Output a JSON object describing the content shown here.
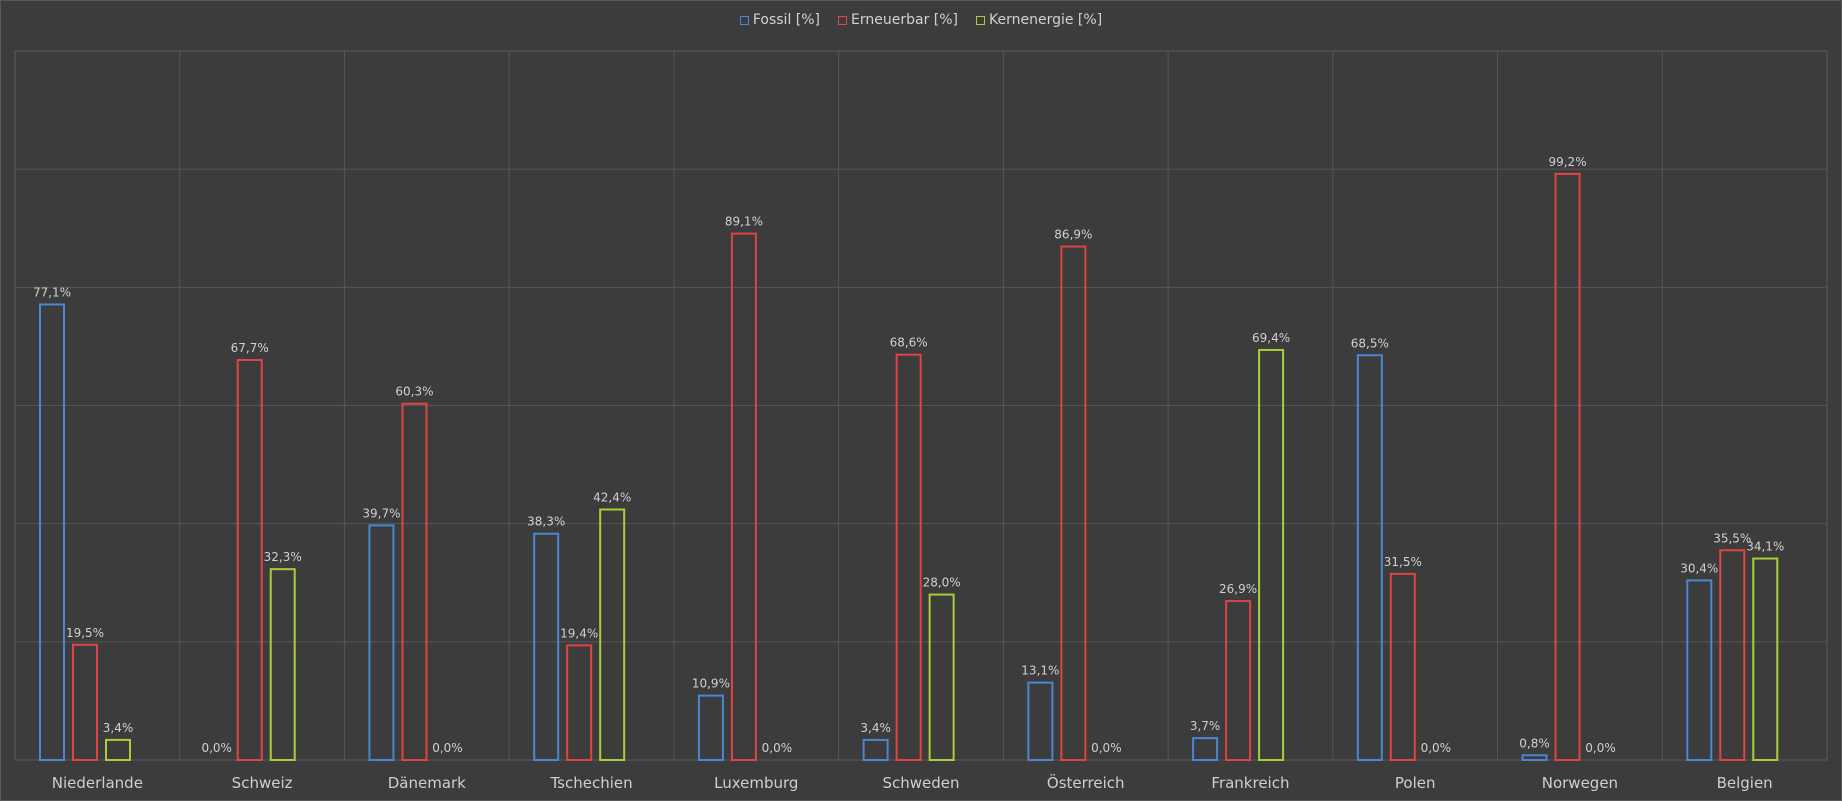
{
  "chart_data": {
    "type": "bar",
    "categories": [
      "Niederlande",
      "Schweiz",
      "Dänemark",
      "Tschechien",
      "Luxemburg",
      "Schweden",
      "Österreich",
      "Frankreich",
      "Polen",
      "Norwegen",
      "Belgien"
    ],
    "series": [
      {
        "name": "Fossil [%]",
        "color": "#4a86d4",
        "values": [
          77.1,
          0.0,
          39.7,
          38.3,
          10.9,
          3.4,
          13.1,
          3.7,
          68.5,
          0.8,
          30.4
        ],
        "labels": [
          "77,1%",
          "0,0%",
          "39,7%",
          "38,3%",
          "10,9%",
          "3,4%",
          "13,1%",
          "3,7%",
          "68,5%",
          "0,8%",
          "30,4%"
        ]
      },
      {
        "name": "Erneuerbar [%]",
        "color": "#e04444",
        "values": [
          19.5,
          67.7,
          60.3,
          19.4,
          89.1,
          68.6,
          86.9,
          26.9,
          31.5,
          99.2,
          35.5
        ],
        "labels": [
          "19,5%",
          "67,7%",
          "60,3%",
          "19,4%",
          "89,1%",
          "68,6%",
          "86,9%",
          "26,9%",
          "31,5%",
          "99,2%",
          "35,5%"
        ]
      },
      {
        "name": "Kernenergie [%]",
        "color": "#a6cf3a",
        "values": [
          3.4,
          32.3,
          0.0,
          42.4,
          0.0,
          28.0,
          0.0,
          69.4,
          0.0,
          0.0,
          34.1
        ],
        "labels": [
          "3,4%",
          "32,3%",
          "0,0%",
          "42,4%",
          "0,0%",
          "28,0%",
          "0,0%",
          "69,4%",
          "0,0%",
          "0,0%",
          "34,1%"
        ]
      }
    ],
    "ylim": [
      0,
      120
    ],
    "grid": true,
    "legend_position": "top-center",
    "title": "",
    "xlabel": "",
    "ylabel": ""
  }
}
